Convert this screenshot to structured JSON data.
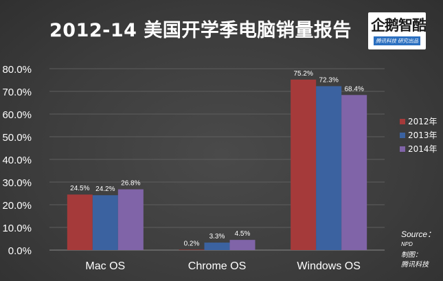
{
  "title": "2012-14 美国开学季电脑销量报告",
  "logo": {
    "text": "企鹅智酷",
    "tag": "腾讯科技  研究出品"
  },
  "source": {
    "label": "Source：",
    "name": "NPD",
    "made_by": "制图：",
    "org": "腾讯科技"
  },
  "chart_data": {
    "type": "bar",
    "categories": [
      "Mac OS",
      "Chrome OS",
      "Windows OS"
    ],
    "series": [
      {
        "name": "2012年",
        "color": "#a53a3a",
        "values": [
          24.5,
          0.2,
          75.2
        ],
        "labels": [
          "24.5%",
          "0.2%",
          "75.2%"
        ]
      },
      {
        "name": "2013年",
        "color": "#3b62a0",
        "values": [
          24.2,
          3.3,
          72.3
        ],
        "labels": [
          "24.2%",
          "3.3%",
          "72.3%"
        ]
      },
      {
        "name": "2014年",
        "color": "#8064a8",
        "values": [
          26.8,
          4.5,
          68.4
        ],
        "labels": [
          "26.8%",
          "4.5%",
          "68.4%"
        ]
      }
    ],
    "ylim": [
      0,
      80
    ],
    "yticks": [
      0,
      10,
      20,
      30,
      40,
      50,
      60,
      70,
      80
    ],
    "ytick_labels": [
      "0.0%",
      "10.0%",
      "20.0%",
      "30.0%",
      "40.0%",
      "50.0%",
      "60.0%",
      "70.0%",
      "80.0%"
    ],
    "grid": true,
    "legend": "right"
  }
}
